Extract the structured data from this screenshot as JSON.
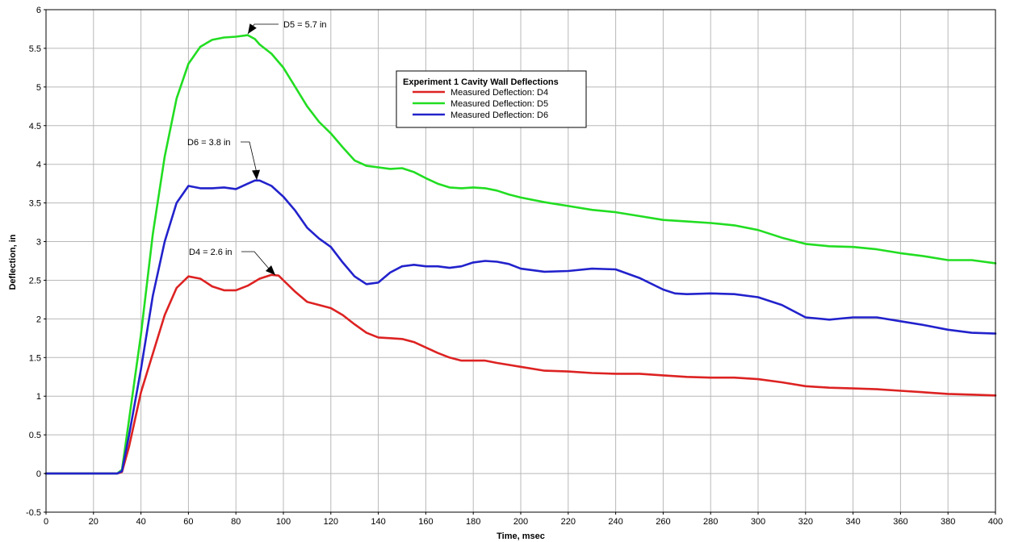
{
  "chart_data": {
    "type": "line",
    "xlabel": "Time, msec",
    "ylabel": "Deflection, in",
    "xlim": [
      0,
      400
    ],
    "ylim": [
      -0.5,
      6
    ],
    "xticks": [
      0,
      20,
      40,
      60,
      80,
      100,
      120,
      140,
      160,
      180,
      200,
      220,
      240,
      260,
      280,
      300,
      320,
      340,
      360,
      380,
      400
    ],
    "yticks": [
      -0.5,
      0,
      0.5,
      1,
      1.5,
      2,
      2.5,
      3,
      3.5,
      4,
      4.5,
      5,
      5.5,
      6
    ],
    "xtick_labels": [
      "0",
      "20",
      "40",
      "60",
      "80",
      "100",
      "120",
      "140",
      "160",
      "180",
      "200",
      "220",
      "240",
      "260",
      "280",
      "300",
      "320",
      "340",
      "360",
      "380",
      "400"
    ],
    "ytick_labels": [
      "-0.5",
      "0",
      "0.5",
      "1",
      "1.5",
      "2",
      "2.5",
      "3",
      "3.5",
      "4",
      "4.5",
      "5",
      "5.5",
      "6"
    ],
    "grid": true,
    "legend": {
      "title": "Experiment 1 Cavity Wall Deflections",
      "placement": "top-center"
    },
    "series": [
      {
        "name": "Measured Deflection: D4",
        "color": "#dd2222",
        "x": [
          0,
          10,
          20,
          30,
          32,
          35,
          40,
          45,
          50,
          55,
          60,
          65,
          70,
          75,
          80,
          85,
          90,
          95,
          98,
          100,
          105,
          110,
          115,
          120,
          125,
          130,
          135,
          140,
          145,
          150,
          155,
          160,
          165,
          170,
          175,
          180,
          185,
          190,
          200,
          210,
          220,
          230,
          240,
          250,
          260,
          270,
          280,
          290,
          300,
          310,
          320,
          330,
          340,
          350,
          360,
          370,
          380,
          390,
          400
        ],
        "y": [
          0,
          0,
          0,
          0,
          0.02,
          0.35,
          1.05,
          1.55,
          2.05,
          2.4,
          2.55,
          2.52,
          2.42,
          2.37,
          2.37,
          2.43,
          2.52,
          2.57,
          2.56,
          2.5,
          2.35,
          2.22,
          2.18,
          2.14,
          2.05,
          1.93,
          1.82,
          1.76,
          1.75,
          1.74,
          1.7,
          1.63,
          1.56,
          1.5,
          1.46,
          1.46,
          1.46,
          1.43,
          1.38,
          1.33,
          1.32,
          1.3,
          1.29,
          1.29,
          1.27,
          1.25,
          1.24,
          1.24,
          1.22,
          1.18,
          1.13,
          1.11,
          1.1,
          1.09,
          1.07,
          1.05,
          1.03,
          1.02,
          1.01
        ]
      },
      {
        "name": "Measured Deflection: D5",
        "color": "#22dd22",
        "x": [
          0,
          10,
          20,
          30,
          32,
          35,
          40,
          45,
          50,
          55,
          60,
          65,
          70,
          75,
          80,
          85,
          88,
          90,
          95,
          100,
          105,
          110,
          115,
          120,
          125,
          130,
          135,
          140,
          145,
          150,
          155,
          160,
          165,
          170,
          175,
          180,
          185,
          190,
          195,
          200,
          210,
          220,
          230,
          240,
          250,
          260,
          270,
          280,
          290,
          300,
          310,
          320,
          330,
          340,
          350,
          360,
          370,
          380,
          390,
          400
        ],
        "y": [
          0,
          0,
          0,
          0,
          0.05,
          0.7,
          1.8,
          3.1,
          4.1,
          4.85,
          5.3,
          5.52,
          5.61,
          5.64,
          5.65,
          5.67,
          5.62,
          5.55,
          5.43,
          5.25,
          5.0,
          4.75,
          4.55,
          4.4,
          4.22,
          4.05,
          3.98,
          3.96,
          3.94,
          3.95,
          3.9,
          3.82,
          3.75,
          3.7,
          3.69,
          3.7,
          3.69,
          3.66,
          3.61,
          3.57,
          3.51,
          3.46,
          3.41,
          3.38,
          3.33,
          3.28,
          3.26,
          3.24,
          3.21,
          3.15,
          3.05,
          2.97,
          2.94,
          2.93,
          2.9,
          2.85,
          2.81,
          2.76,
          2.76,
          2.72
        ]
      },
      {
        "name": "Measured Deflection: D6",
        "color": "#2222cc",
        "x": [
          0,
          10,
          20,
          30,
          32,
          35,
          40,
          45,
          50,
          55,
          60,
          65,
          70,
          75,
          80,
          85,
          88,
          90,
          95,
          100,
          105,
          110,
          115,
          120,
          125,
          130,
          135,
          140,
          145,
          150,
          155,
          160,
          165,
          170,
          175,
          180,
          185,
          190,
          195,
          200,
          210,
          220,
          230,
          240,
          250,
          260,
          265,
          270,
          280,
          290,
          300,
          310,
          320,
          330,
          340,
          350,
          360,
          370,
          380,
          390,
          400
        ],
        "y": [
          0,
          0,
          0,
          0,
          0.03,
          0.5,
          1.35,
          2.3,
          3.0,
          3.5,
          3.72,
          3.69,
          3.69,
          3.7,
          3.68,
          3.75,
          3.79,
          3.79,
          3.72,
          3.58,
          3.4,
          3.18,
          3.04,
          2.93,
          2.73,
          2.55,
          2.45,
          2.47,
          2.6,
          2.68,
          2.7,
          2.68,
          2.68,
          2.66,
          2.68,
          2.73,
          2.75,
          2.74,
          2.71,
          2.65,
          2.61,
          2.62,
          2.65,
          2.64,
          2.53,
          2.38,
          2.33,
          2.32,
          2.33,
          2.32,
          2.28,
          2.18,
          2.02,
          1.99,
          2.02,
          2.02,
          1.97,
          1.92,
          1.86,
          1.82,
          1.81
        ]
      }
    ],
    "annotations": [
      {
        "text": "D5 = 5.7 in",
        "x": 87,
        "y": 5.67
      },
      {
        "text": "D6 = 3.8 in",
        "x": 89,
        "y": 3.79
      },
      {
        "text": "D4 = 2.6 in",
        "x": 98,
        "y": 2.57
      }
    ]
  }
}
